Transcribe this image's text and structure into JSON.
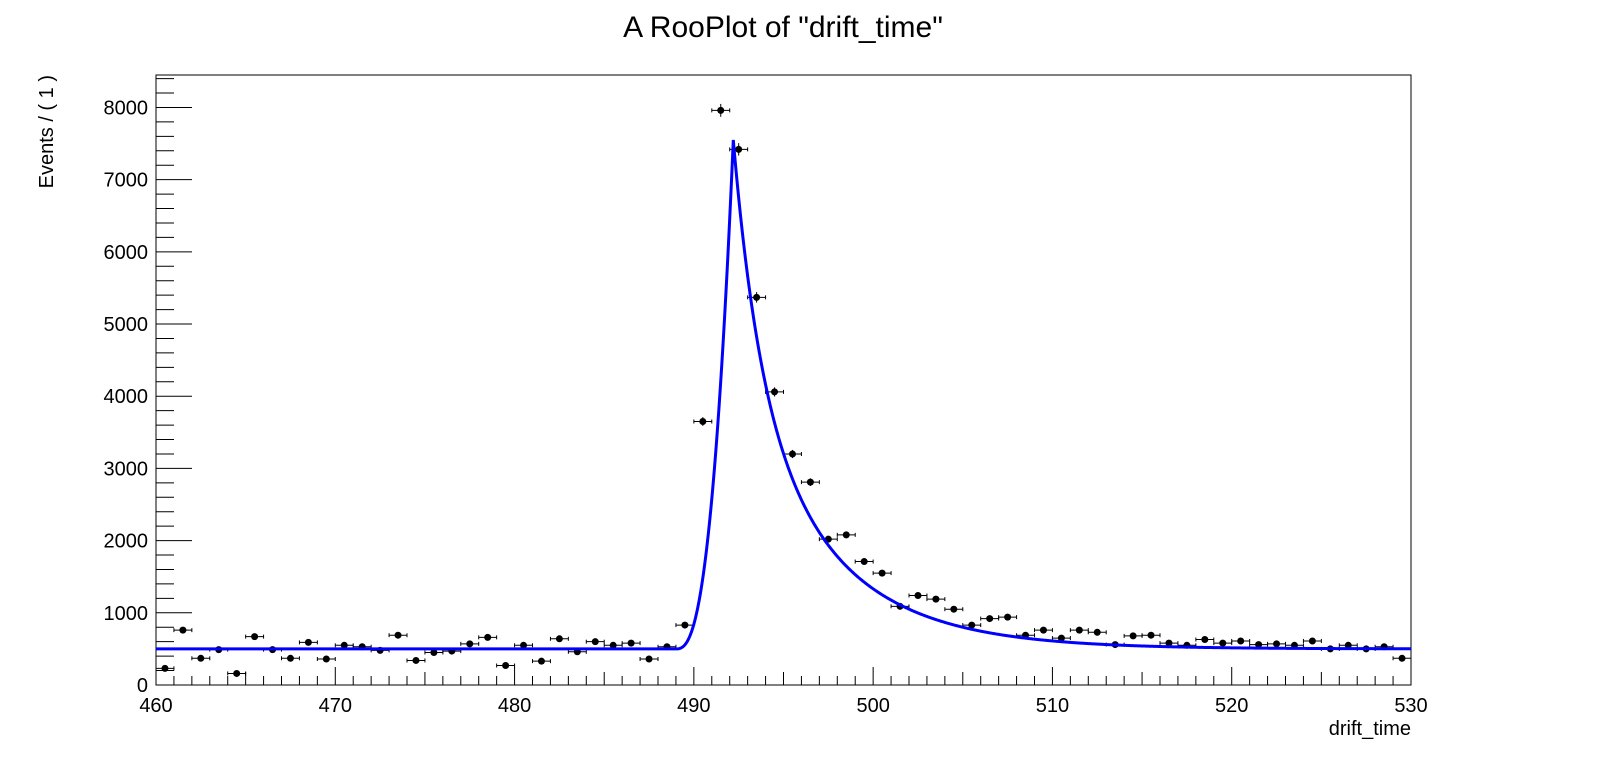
{
  "chart_data": {
    "type": "scatter",
    "title": "A RooPlot of \"drift_time\"",
    "xlabel": "drift_time",
    "ylabel": "Events / ( 1 )",
    "xlim": [
      460,
      530
    ],
    "ylim": [
      0,
      8450
    ],
    "x_major_ticks": [
      460,
      470,
      480,
      490,
      500,
      510,
      520,
      530
    ],
    "y_major_ticks": [
      0,
      1000,
      2000,
      3000,
      4000,
      5000,
      6000,
      7000,
      8000
    ],
    "grid": false,
    "colors": {
      "data": "#000000",
      "fit": "#0000ff",
      "frame": "#000000"
    },
    "series": [
      {
        "kind": "data-points-with-errors",
        "bin_width": 1,
        "x": [
          460.5,
          461.5,
          462.5,
          463.5,
          464.5,
          465.5,
          466.5,
          467.5,
          468.5,
          469.5,
          470.5,
          471.5,
          472.5,
          473.5,
          474.5,
          475.5,
          476.5,
          477.5,
          478.5,
          479.5,
          480.5,
          481.5,
          482.5,
          483.5,
          484.5,
          485.5,
          486.5,
          487.5,
          488.5,
          489.5,
          490.5,
          491.5,
          492.5,
          493.5,
          494.5,
          495.5,
          496.5,
          497.5,
          498.5,
          499.5,
          500.5,
          501.5,
          502.5,
          503.5,
          504.5,
          505.5,
          506.5,
          507.5,
          508.5,
          509.5,
          510.5,
          511.5,
          512.5,
          513.5,
          514.5,
          515.5,
          516.5,
          517.5,
          518.5,
          519.5,
          520.5,
          521.5,
          522.5,
          523.5,
          524.5,
          525.5,
          526.5,
          527.5,
          528.5,
          529.5
        ],
        "y": [
          230,
          760,
          370,
          490,
          160,
          670,
          490,
          370,
          590,
          360,
          550,
          530,
          480,
          690,
          340,
          450,
          470,
          570,
          660,
          270,
          550,
          330,
          640,
          460,
          600,
          550,
          580,
          360,
          530,
          830,
          3650,
          7960,
          7420,
          5370,
          4060,
          3200,
          2810,
          2020,
          2080,
          1710,
          1550,
          1090,
          1240,
          1190,
          1050,
          830,
          920,
          940,
          690,
          760,
          650,
          760,
          730,
          560,
          680,
          690,
          580,
          550,
          630,
          580,
          610,
          560,
          570,
          550,
          610,
          500,
          550,
          500,
          530,
          370
        ]
      },
      {
        "kind": "fit-curve",
        "baseline": 500,
        "onset": 489,
        "peak_x": 492.2,
        "peak_y": 7550
      }
    ]
  }
}
